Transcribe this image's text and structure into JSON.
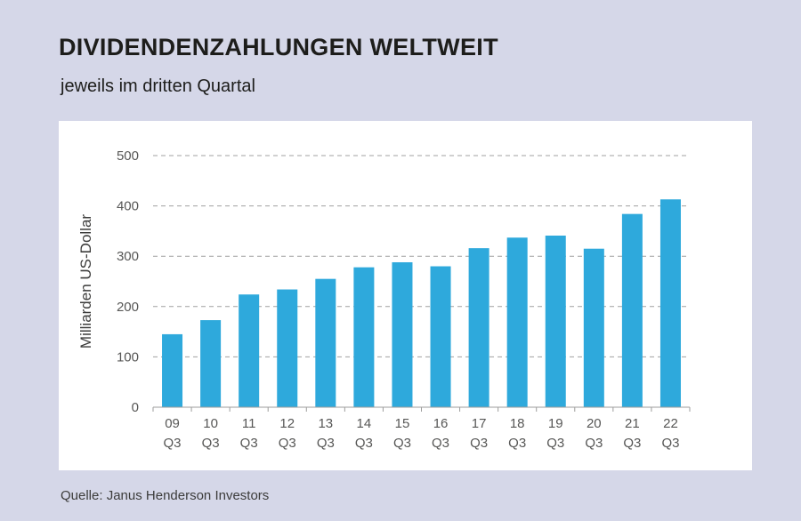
{
  "title": "DIVIDENDENZAHLUNGEN WELTWEIT",
  "subtitle": "jeweils im dritten Quartal",
  "source": "Quelle: Janus Henderson Investors",
  "colors": {
    "background": "#d5d7e8",
    "panel": "#ffffff",
    "bar": "#2ea9dc",
    "grid": "#a0a0a0",
    "text": "#1d1d1b"
  },
  "chart_data": {
    "type": "bar",
    "title": "DIVIDENDENZAHLUNGEN WELTWEIT",
    "subtitle": "jeweils im dritten Quartal",
    "xlabel": "",
    "ylabel": "Milliarden US-Dollar",
    "ylim": [
      0,
      500
    ],
    "yticks": [
      0,
      100,
      200,
      300,
      400,
      500
    ],
    "grid": true,
    "categories": [
      [
        "09",
        "Q3"
      ],
      [
        "10",
        "Q3"
      ],
      [
        "11",
        "Q3"
      ],
      [
        "12",
        "Q3"
      ],
      [
        "13",
        "Q3"
      ],
      [
        "14",
        "Q3"
      ],
      [
        "15",
        "Q3"
      ],
      [
        "16",
        "Q3"
      ],
      [
        "17",
        "Q3"
      ],
      [
        "18",
        "Q3"
      ],
      [
        "19",
        "Q3"
      ],
      [
        "20",
        "Q3"
      ],
      [
        "21",
        "Q3"
      ],
      [
        "22",
        "Q3"
      ]
    ],
    "values": [
      145,
      173,
      224,
      234,
      255,
      278,
      288,
      280,
      316,
      337,
      341,
      315,
      384,
      413
    ]
  }
}
